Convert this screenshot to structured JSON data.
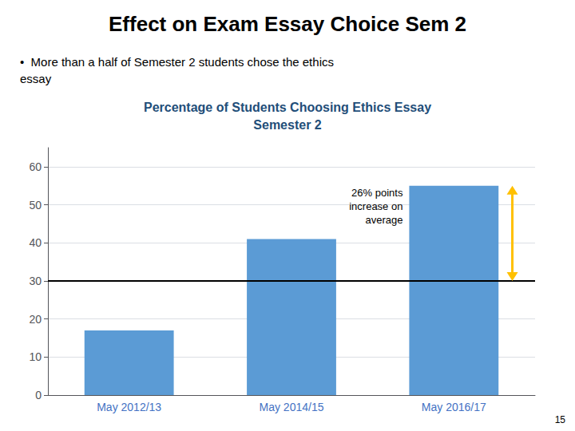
{
  "slide_title": "Effect on Exam Essay Choice Sem 2",
  "bullet_text": "•  More than a half of Semester 2 students chose the ethics\nessay",
  "page_number": "15",
  "chart_data": {
    "type": "bar",
    "title": "Percentage of Students Choosing Ethics Essay\nSemester 2",
    "categories": [
      "May 2012/13",
      "May 2014/15",
      "May 2016/17"
    ],
    "values": [
      17,
      41,
      55
    ],
    "color": "#5B9BD5",
    "ylim": [
      0,
      65
    ],
    "yticks": [
      0,
      10,
      20,
      30,
      40,
      50,
      60
    ],
    "grid": true,
    "hline": {
      "value": 30,
      "color": "#000000"
    },
    "arrow": {
      "category": "May 2016/17",
      "from": 30,
      "to": 55,
      "color": "#FFC000"
    },
    "annotation": "26% points\nincrease on\naverage"
  }
}
